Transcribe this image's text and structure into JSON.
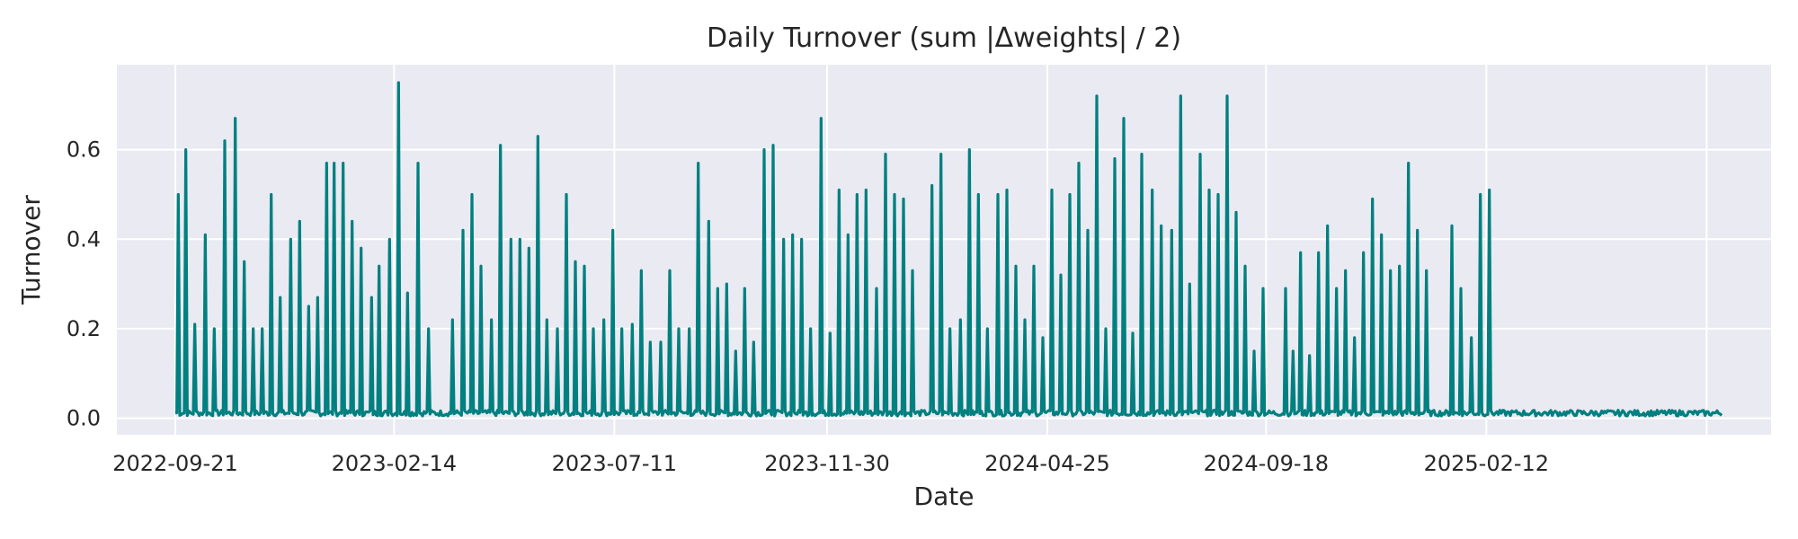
{
  "chart_data": {
    "type": "line",
    "title": "Daily Turnover (sum |Δweights| / 2)",
    "xlabel": "Date",
    "ylabel": "Turnover",
    "x_range": [
      "2022-08-13",
      "2025-08-21"
    ],
    "ylim": [
      -0.037,
      0.79
    ],
    "x_ticks": [
      "2022-09-21",
      "2023-02-14",
      "2023-07-11",
      "2023-11-30",
      "2024-04-25",
      "2024-09-18",
      "2025-02-12"
    ],
    "extra_x_grid": [
      "2025-07-09"
    ],
    "y_ticks": [
      0.0,
      0.2,
      0.4,
      0.6
    ],
    "y_tick_labels": [
      "0.0",
      "0.2",
      "0.4",
      "0.6"
    ],
    "grid": true,
    "legend": "none",
    "background_color": "#eaeaf2",
    "line_color": "#008080",
    "baseline": {
      "start": "2022-09-21",
      "end": "2025-07-19",
      "low": 0.005,
      "high": 0.018
    },
    "series": [
      {
        "values": [
          [
            "2022-09-23",
            0.5
          ],
          [
            "2022-09-28",
            0.6
          ],
          [
            "2022-10-04",
            0.21
          ],
          [
            "2022-10-11",
            0.41
          ],
          [
            "2022-10-17",
            0.2
          ],
          [
            "2022-10-24",
            0.62
          ],
          [
            "2022-10-31",
            0.67
          ],
          [
            "2022-11-06",
            0.35
          ],
          [
            "2022-11-12",
            0.2
          ],
          [
            "2022-11-18",
            0.2
          ],
          [
            "2022-11-24",
            0.5
          ],
          [
            "2022-11-30",
            0.27
          ],
          [
            "2022-12-07",
            0.4
          ],
          [
            "2022-12-13",
            0.44
          ],
          [
            "2022-12-19",
            0.25
          ],
          [
            "2022-12-25",
            0.27
          ],
          [
            "2022-12-31",
            0.57
          ],
          [
            "2023-01-05",
            0.57
          ],
          [
            "2023-01-11",
            0.57
          ],
          [
            "2023-01-17",
            0.44
          ],
          [
            "2023-01-23",
            0.38
          ],
          [
            "2023-01-30",
            0.27
          ],
          [
            "2023-02-04",
            0.34
          ],
          [
            "2023-02-11",
            0.4
          ],
          [
            "2023-02-17",
            0.75
          ],
          [
            "2023-02-23",
            0.28
          ],
          [
            "2023-03-02",
            0.57
          ],
          [
            "2023-03-09",
            0.2
          ],
          [
            "2023-03-25",
            0.22
          ],
          [
            "2023-04-01",
            0.42
          ],
          [
            "2023-04-07",
            0.5
          ],
          [
            "2023-04-13",
            0.34
          ],
          [
            "2023-04-20",
            0.22
          ],
          [
            "2023-04-26",
            0.61
          ],
          [
            "2023-05-03",
            0.4
          ],
          [
            "2023-05-09",
            0.4
          ],
          [
            "2023-05-15",
            0.38
          ],
          [
            "2023-05-21",
            0.63
          ],
          [
            "2023-05-27",
            0.22
          ],
          [
            "2023-06-03",
            0.2
          ],
          [
            "2023-06-09",
            0.5
          ],
          [
            "2023-06-15",
            0.35
          ],
          [
            "2023-06-21",
            0.34
          ],
          [
            "2023-06-27",
            0.2
          ],
          [
            "2023-07-04",
            0.22
          ],
          [
            "2023-07-10",
            0.42
          ],
          [
            "2023-07-16",
            0.2
          ],
          [
            "2023-07-23",
            0.21
          ],
          [
            "2023-07-29",
            0.33
          ],
          [
            "2023-08-04",
            0.17
          ],
          [
            "2023-08-11",
            0.17
          ],
          [
            "2023-08-17",
            0.33
          ],
          [
            "2023-08-23",
            0.2
          ],
          [
            "2023-08-30",
            0.2
          ],
          [
            "2023-09-05",
            0.57
          ],
          [
            "2023-09-12",
            0.44
          ],
          [
            "2023-09-18",
            0.29
          ],
          [
            "2023-09-24",
            0.3
          ],
          [
            "2023-09-30",
            0.15
          ],
          [
            "2023-10-06",
            0.29
          ],
          [
            "2023-10-12",
            0.17
          ],
          [
            "2023-10-19",
            0.6
          ],
          [
            "2023-10-25",
            0.61
          ],
          [
            "2023-11-01",
            0.4
          ],
          [
            "2023-11-07",
            0.41
          ],
          [
            "2023-11-13",
            0.4
          ],
          [
            "2023-11-19",
            0.2
          ],
          [
            "2023-11-26",
            0.67
          ],
          [
            "2023-12-02",
            0.19
          ],
          [
            "2023-12-08",
            0.51
          ],
          [
            "2023-12-14",
            0.41
          ],
          [
            "2023-12-20",
            0.5
          ],
          [
            "2023-12-26",
            0.51
          ],
          [
            "2024-01-02",
            0.29
          ],
          [
            "2024-01-08",
            0.59
          ],
          [
            "2024-01-14",
            0.5
          ],
          [
            "2024-01-20",
            0.49
          ],
          [
            "2024-01-26",
            0.33
          ],
          [
            "2024-02-08",
            0.52
          ],
          [
            "2024-02-14",
            0.59
          ],
          [
            "2024-02-20",
            0.2
          ],
          [
            "2024-02-27",
            0.22
          ],
          [
            "2024-03-04",
            0.6
          ],
          [
            "2024-03-10",
            0.5
          ],
          [
            "2024-03-16",
            0.2
          ],
          [
            "2024-03-23",
            0.5
          ],
          [
            "2024-03-29",
            0.51
          ],
          [
            "2024-04-04",
            0.34
          ],
          [
            "2024-04-10",
            0.22
          ],
          [
            "2024-04-16",
            0.34
          ],
          [
            "2024-04-22",
            0.18
          ],
          [
            "2024-04-28",
            0.51
          ],
          [
            "2024-05-04",
            0.32
          ],
          [
            "2024-05-10",
            0.5
          ],
          [
            "2024-05-16",
            0.57
          ],
          [
            "2024-05-22",
            0.42
          ],
          [
            "2024-05-28",
            0.72
          ],
          [
            "2024-06-03",
            0.2
          ],
          [
            "2024-06-09",
            0.58
          ],
          [
            "2024-06-15",
            0.67
          ],
          [
            "2024-06-21",
            0.19
          ],
          [
            "2024-06-27",
            0.59
          ],
          [
            "2024-07-04",
            0.51
          ],
          [
            "2024-07-10",
            0.43
          ],
          [
            "2024-07-17",
            0.42
          ],
          [
            "2024-07-23",
            0.72
          ],
          [
            "2024-07-29",
            0.3
          ],
          [
            "2024-08-05",
            0.59
          ],
          [
            "2024-08-11",
            0.51
          ],
          [
            "2024-08-17",
            0.5
          ],
          [
            "2024-08-23",
            0.72
          ],
          [
            "2024-08-29",
            0.46
          ],
          [
            "2024-09-04",
            0.34
          ],
          [
            "2024-09-10",
            0.15
          ],
          [
            "2024-09-16",
            0.29
          ],
          [
            "2024-10-01",
            0.29
          ],
          [
            "2024-10-06",
            0.15
          ],
          [
            "2024-10-11",
            0.37
          ],
          [
            "2024-10-17",
            0.14
          ],
          [
            "2024-10-23",
            0.37
          ],
          [
            "2024-10-29",
            0.43
          ],
          [
            "2024-11-04",
            0.29
          ],
          [
            "2024-11-10",
            0.33
          ],
          [
            "2024-11-16",
            0.18
          ],
          [
            "2024-11-22",
            0.37
          ],
          [
            "2024-11-28",
            0.49
          ],
          [
            "2024-12-04",
            0.41
          ],
          [
            "2024-12-10",
            0.33
          ],
          [
            "2024-12-16",
            0.34
          ],
          [
            "2024-12-22",
            0.57
          ],
          [
            "2024-12-28",
            0.42
          ],
          [
            "2025-01-03",
            0.33
          ],
          [
            "2025-01-20",
            0.43
          ],
          [
            "2025-01-26",
            0.29
          ],
          [
            "2025-02-02",
            0.18
          ],
          [
            "2025-02-08",
            0.5
          ],
          [
            "2025-02-14",
            0.51
          ]
        ]
      }
    ]
  }
}
